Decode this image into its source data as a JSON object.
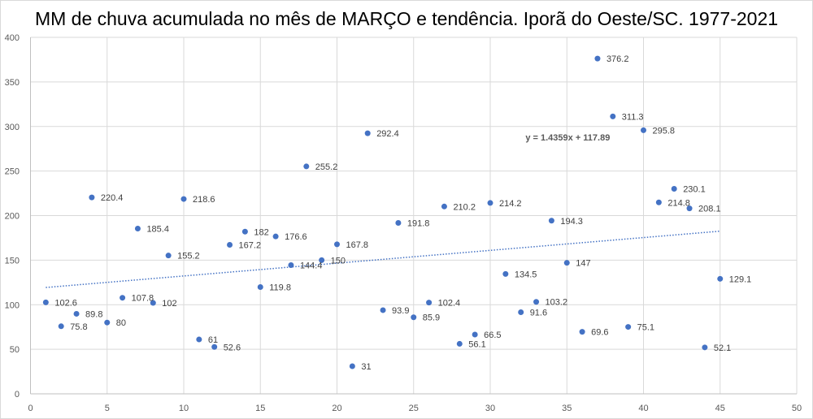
{
  "chart_data": {
    "type": "scatter",
    "title": "MM de chuva acumulada no mês de MARÇO e tendência. Iporã do Oeste/SC. 1977-2021",
    "xlabel": "",
    "ylabel": "",
    "xlim": [
      0,
      50
    ],
    "ylim": [
      0,
      400
    ],
    "xticks": [
      0,
      5,
      10,
      15,
      20,
      25,
      30,
      35,
      40,
      45,
      50
    ],
    "yticks": [
      0,
      50,
      100,
      150,
      200,
      250,
      300,
      350,
      400
    ],
    "grid": true,
    "series": [
      {
        "name": "MM de chuva",
        "color": "#4472c4",
        "x": [
          1,
          2,
          3,
          4,
          5,
          6,
          7,
          8,
          9,
          10,
          11,
          12,
          13,
          14,
          15,
          16,
          17,
          18,
          19,
          20,
          21,
          22,
          23,
          24,
          25,
          26,
          27,
          28,
          29,
          30,
          31,
          32,
          33,
          34,
          35,
          36,
          37,
          38,
          39,
          40,
          41,
          42,
          43,
          44,
          45
        ],
        "y": [
          102.6,
          75.8,
          89.8,
          220.4,
          80,
          107.8,
          185.4,
          102,
          155.2,
          218.6,
          61,
          52.6,
          167.2,
          182,
          119.8,
          176.6,
          144.4,
          255.2,
          150,
          167.8,
          31,
          292.4,
          93.9,
          191.8,
          85.9,
          102.4,
          210.2,
          56.1,
          66.5,
          214.2,
          134.5,
          91.6,
          103.2,
          194.3,
          147,
          69.6,
          376.2,
          311.3,
          75.1,
          295.8,
          214.8,
          230.1,
          208.1,
          52.1,
          129.1
        ],
        "labels": [
          "102.6",
          "75.8",
          "89.8",
          "220.4",
          "80",
          "107.8",
          "185.4",
          "102",
          "155.2",
          "218.6",
          "61",
          "52.6",
          "167.2",
          "182",
          "119.8",
          "176.6",
          "144.4",
          "255.2",
          "150",
          "167.8",
          "31",
          "292.4",
          "93.9",
          "191.8",
          "85.9",
          "102.4",
          "210.2",
          "56.1",
          "66.5",
          "214.2",
          "134.5",
          "91.6",
          "103.2",
          "194.3",
          "147",
          "69.6",
          "376.2",
          "311.3",
          "75.1",
          "295.8",
          "214.8",
          "230.1",
          "208.1",
          "52.1",
          "129.1"
        ]
      }
    ],
    "trendline": {
      "slope": 1.4359,
      "intercept": 117.89,
      "x_range": [
        1,
        45
      ],
      "equation": "y = 1.4359x + 117.89",
      "color": "#4472c4"
    }
  }
}
